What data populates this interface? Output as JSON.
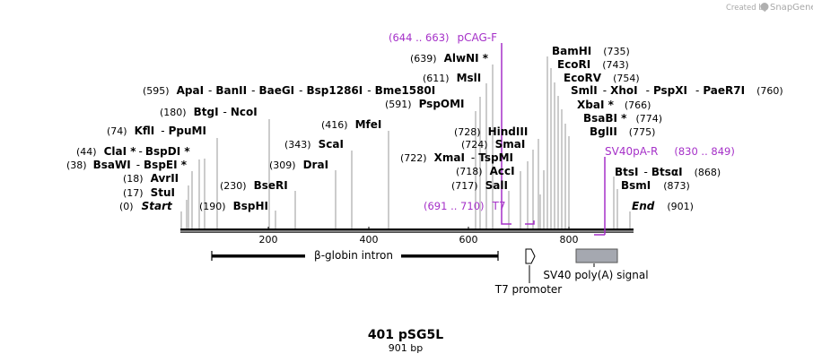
{
  "credit": {
    "prefix": "Created by",
    "brand": "SnapGene"
  },
  "plasmid": {
    "name": "401 pSG5L",
    "length_label": "901 bp"
  },
  "axis": {
    "ticks": [
      "200",
      "400",
      "600",
      "800"
    ]
  },
  "sites": {
    "start": {
      "pos": "(0)",
      "name": "Start"
    },
    "end": {
      "name": "End",
      "pos": "(901)"
    },
    "stuI": {
      "pos": "(17)",
      "name": "StuI"
    },
    "avrII": {
      "pos": "(18)",
      "name": "AvrII"
    },
    "bsaWI": {
      "pos": "(38)",
      "name1": "BsaWI",
      "sep": "-",
      "name2": "BspEI *"
    },
    "claI": {
      "pos": "(44)",
      "name1": "ClaI *",
      "sep": "-",
      "name2": "BspDI *"
    },
    "kflI": {
      "pos": "(74)",
      "name1": "KflI",
      "sep": "-",
      "name2": "PpuMI"
    },
    "btgI": {
      "pos": "(180)",
      "name1": "BtgI",
      "sep": "-",
      "name2": "NcoI"
    },
    "bspHI": {
      "pos": "(190)",
      "name": "BspHI"
    },
    "bseRI": {
      "pos": "(230)",
      "name": "BseRI"
    },
    "draI": {
      "pos": "(309)",
      "name": "DraI"
    },
    "scaI": {
      "pos": "(343)",
      "name": "ScaI"
    },
    "mfeI": {
      "pos": "(416)",
      "name": "MfeI"
    },
    "apaI": {
      "pos": "(595)",
      "n1": "ApaI",
      "n2": "BanII",
      "n3": "BaeGI",
      "n4": "Bsp1286I",
      "n5": "Bme1580I",
      "sep": "-"
    },
    "pspOMI": {
      "pos": "(591)",
      "name": "PspOMI"
    },
    "mslI": {
      "pos": "(611)",
      "name": "MslI"
    },
    "alwNI": {
      "pos": "(639)",
      "name": "AlwNI *"
    },
    "hindIII": {
      "pos": "(728)",
      "name": "HindIII"
    },
    "smaI": {
      "pos": "(724)",
      "name": "SmaI"
    },
    "xmaI": {
      "pos": "(722)",
      "name1": "XmaI",
      "sep": "-",
      "name2": "TspMI"
    },
    "accI": {
      "pos": "(718)",
      "name": "AccI"
    },
    "salI": {
      "pos": "(717)",
      "name": "SalI"
    },
    "bamHI": {
      "name": "BamHI",
      "pos": "(735)"
    },
    "ecoRI": {
      "name": "EcoRI",
      "pos": "(743)"
    },
    "ecoRV": {
      "name": "EcoRV",
      "pos": "(754)"
    },
    "smlI": {
      "n1": "SmlI",
      "n2": "XhoI",
      "n3": "PspXI",
      "n4": "PaeR7I",
      "sep": "-",
      "pos": "(760)"
    },
    "xbaI": {
      "name": "XbaI *",
      "pos": "(766)"
    },
    "bsaBI": {
      "name": "BsaBI *",
      "pos": "(774)"
    },
    "bglII": {
      "name": "BglII",
      "pos": "(775)"
    },
    "btsI": {
      "name1": "BtsI",
      "sep": "-",
      "name2": "BtsαI",
      "pos": "(868)"
    },
    "bsmI": {
      "name": "BsmI",
      "pos": "(873)"
    }
  },
  "primers": {
    "pcag": {
      "range": "(644 .. 663)",
      "name": "pCAG-F"
    },
    "t7": {
      "range": "(691 .. 710)",
      "name": "T7"
    },
    "sv40": {
      "name": "SV40pA-R",
      "range": "(830 .. 849)"
    }
  },
  "features": {
    "globin": "β-globin intron",
    "t7promoter": "T7 promoter",
    "sv40polyA": "SV40 poly(A) signal"
  },
  "colors": {
    "primer": "#a530c8",
    "sv40box": "#a5a8b0",
    "tick": "#999999",
    "credit": "#a8a8a8"
  }
}
